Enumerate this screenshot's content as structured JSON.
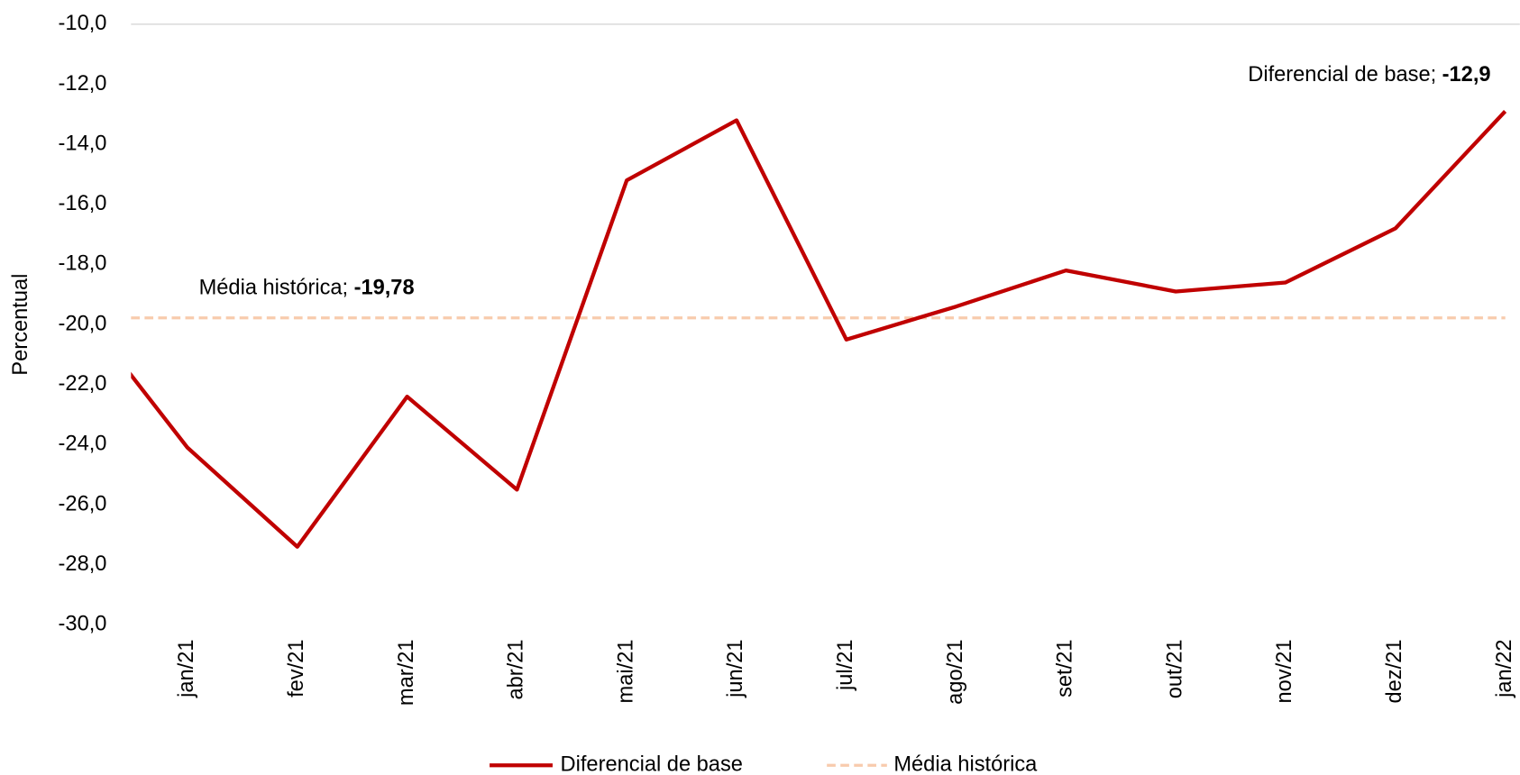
{
  "chart_data": {
    "type": "line",
    "y_label": "Percentual",
    "categories": [
      null,
      "jan/21",
      "fev/21",
      "mar/21",
      "abr/21",
      "mai/21",
      "jun/21",
      "jul/21",
      "ago/21",
      "set/21",
      "out/21",
      "nov/21",
      "dez/21",
      "jan/22"
    ],
    "series": [
      {
        "name": "Diferencial de base",
        "color": "#c00000",
        "values": [
          -19.4,
          -24.1,
          -27.4,
          -22.4,
          -25.5,
          -15.2,
          -13.2,
          -20.5,
          -19.4,
          -18.2,
          -18.9,
          -18.6,
          -16.8,
          -12.9
        ]
      }
    ],
    "reference_line": {
      "name": "Média histórica",
      "value": -19.78,
      "color": "#f8cbad"
    },
    "annotations": [
      {
        "label": "Média histórica;",
        "value_label": "-19,78"
      },
      {
        "label": "Diferencial de base;",
        "value_label": "-12,9"
      }
    ],
    "ylim": [
      -30,
      -10
    ],
    "yticks": [
      {
        "value": -10,
        "label": "-10,0"
      },
      {
        "value": -12,
        "label": "-12,0"
      },
      {
        "value": -14,
        "label": "-14,0"
      },
      {
        "value": -16,
        "label": "-16,0"
      },
      {
        "value": -18,
        "label": "-18,0"
      },
      {
        "value": -20,
        "label": "-20,0"
      },
      {
        "value": -22,
        "label": "-22,0"
      },
      {
        "value": -24,
        "label": "-24,0"
      },
      {
        "value": -26,
        "label": "-26,0"
      },
      {
        "value": -28,
        "label": "-28,0"
      },
      {
        "value": -30,
        "label": "-30,0"
      }
    ],
    "grid": false,
    "legend": "bottom"
  }
}
